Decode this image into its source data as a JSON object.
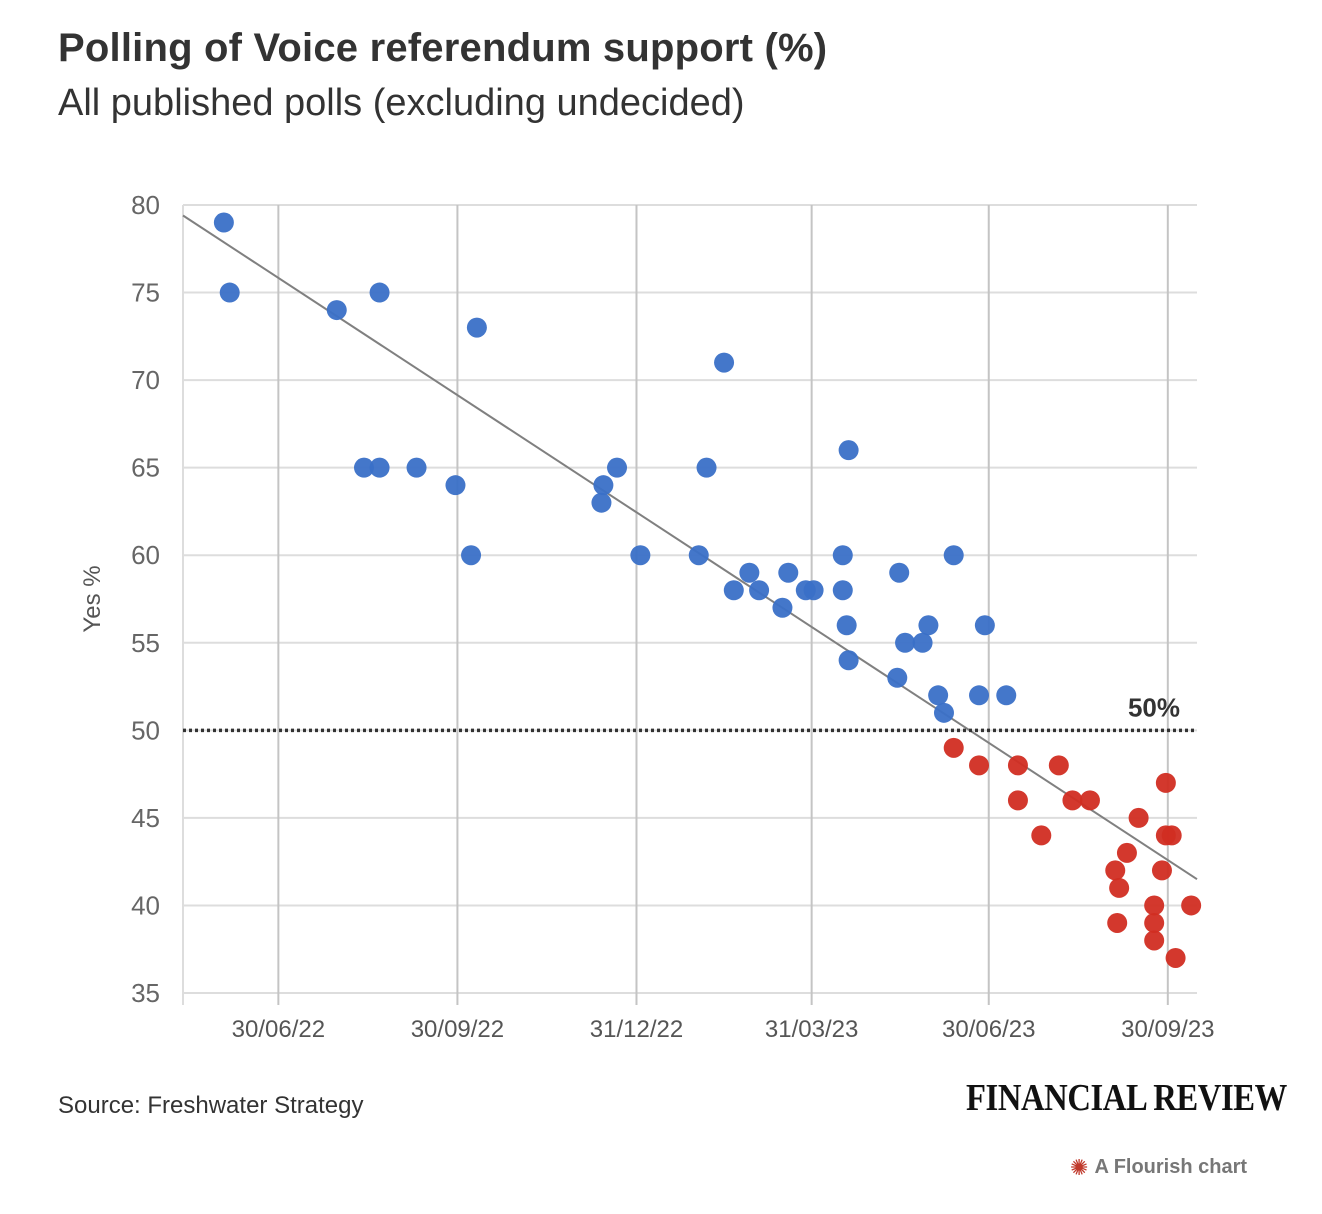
{
  "chart_data": {
    "type": "scatter",
    "title": "Polling of Voice referendum support (%)",
    "subtitle": "All published polls (excluding undecided)",
    "ylabel": "Yes %",
    "xlabel": "",
    "ylim": [
      35,
      80
    ],
    "xlim": [
      "2022-05-12",
      "2023-10-15"
    ],
    "yticks": [
      35,
      40,
      45,
      50,
      55,
      60,
      65,
      70,
      75,
      80
    ],
    "xticks": [
      {
        "date": "2022-06-30",
        "label": "30/06/22"
      },
      {
        "date": "2022-09-30",
        "label": "30/09/22"
      },
      {
        "date": "2022-12-31",
        "label": "31/12/22"
      },
      {
        "date": "2023-03-31",
        "label": "31/03/23"
      },
      {
        "date": "2023-06-30",
        "label": "30/06/23"
      },
      {
        "date": "2023-09-30",
        "label": "30/09/23"
      }
    ],
    "grid": {
      "horizontal": true,
      "vertical": true
    },
    "reference_line": {
      "y": 50,
      "label": "50%",
      "style": "dotted"
    },
    "trend_line": {
      "from": {
        "date": "2022-05-12",
        "y": 79.4
      },
      "to": {
        "date": "2023-10-15",
        "y": 41.5
      }
    },
    "colors": {
      "above": "#3a70c7",
      "below": "#d12d22",
      "trend": "#808080",
      "grid": "#dddddd",
      "vgrid": "#c4c4c4"
    },
    "series": [
      {
        "color": "above",
        "points": [
          {
            "date": "2022-06-02",
            "y": 79
          },
          {
            "date": "2022-06-05",
            "y": 75
          },
          {
            "date": "2022-07-30",
            "y": 74
          },
          {
            "date": "2022-08-13",
            "y": 65
          },
          {
            "date": "2022-08-21",
            "y": 65
          },
          {
            "date": "2022-08-21",
            "y": 75
          },
          {
            "date": "2022-09-09",
            "y": 65
          },
          {
            "date": "2022-09-29",
            "y": 64
          },
          {
            "date": "2022-10-07",
            "y": 60
          },
          {
            "date": "2022-10-10",
            "y": 73
          },
          {
            "date": "2022-12-13",
            "y": 63
          },
          {
            "date": "2022-12-14",
            "y": 64
          },
          {
            "date": "2022-12-21",
            "y": 65
          },
          {
            "date": "2023-01-02",
            "y": 60
          },
          {
            "date": "2023-02-01",
            "y": 60
          },
          {
            "date": "2023-02-05",
            "y": 65
          },
          {
            "date": "2023-02-14",
            "y": 71
          },
          {
            "date": "2023-02-19",
            "y": 58
          },
          {
            "date": "2023-02-27",
            "y": 59
          },
          {
            "date": "2023-03-04",
            "y": 58
          },
          {
            "date": "2023-03-16",
            "y": 57
          },
          {
            "date": "2023-03-19",
            "y": 59
          },
          {
            "date": "2023-03-28",
            "y": 58
          },
          {
            "date": "2023-04-01",
            "y": 58
          },
          {
            "date": "2023-04-16",
            "y": 60
          },
          {
            "date": "2023-04-16",
            "y": 58
          },
          {
            "date": "2023-04-18",
            "y": 56
          },
          {
            "date": "2023-04-19",
            "y": 66
          },
          {
            "date": "2023-04-19",
            "y": 54
          },
          {
            "date": "2023-05-14",
            "y": 53
          },
          {
            "date": "2023-05-15",
            "y": 59
          },
          {
            "date": "2023-05-18",
            "y": 55
          },
          {
            "date": "2023-05-27",
            "y": 55
          },
          {
            "date": "2023-05-30",
            "y": 56
          },
          {
            "date": "2023-06-04",
            "y": 52
          },
          {
            "date": "2023-06-07",
            "y": 51
          },
          {
            "date": "2023-06-12",
            "y": 60
          },
          {
            "date": "2023-06-25",
            "y": 52
          },
          {
            "date": "2023-06-28",
            "y": 56
          },
          {
            "date": "2023-07-09",
            "y": 52
          }
        ]
      },
      {
        "color": "below",
        "points": [
          {
            "date": "2023-06-12",
            "y": 49
          },
          {
            "date": "2023-06-25",
            "y": 48
          },
          {
            "date": "2023-07-15",
            "y": 48
          },
          {
            "date": "2023-07-15",
            "y": 46
          },
          {
            "date": "2023-07-27",
            "y": 44
          },
          {
            "date": "2023-08-05",
            "y": 48
          },
          {
            "date": "2023-08-12",
            "y": 46
          },
          {
            "date": "2023-08-21",
            "y": 46
          },
          {
            "date": "2023-09-03",
            "y": 42
          },
          {
            "date": "2023-09-04",
            "y": 39
          },
          {
            "date": "2023-09-05",
            "y": 41
          },
          {
            "date": "2023-09-09",
            "y": 43
          },
          {
            "date": "2023-09-15",
            "y": 45
          },
          {
            "date": "2023-09-23",
            "y": 40
          },
          {
            "date": "2023-09-23",
            "y": 39
          },
          {
            "date": "2023-09-23",
            "y": 38
          },
          {
            "date": "2023-09-27",
            "y": 42
          },
          {
            "date": "2023-09-29",
            "y": 47
          },
          {
            "date": "2023-09-29",
            "y": 44
          },
          {
            "date": "2023-10-02",
            "y": 44
          },
          {
            "date": "2023-10-04",
            "y": 37
          },
          {
            "date": "2023-10-12",
            "y": 40
          }
        ]
      }
    ]
  },
  "source": "Source: Freshwater Strategy",
  "brand": "FINANCIAL REVIEW",
  "credit": "A Flourish chart"
}
